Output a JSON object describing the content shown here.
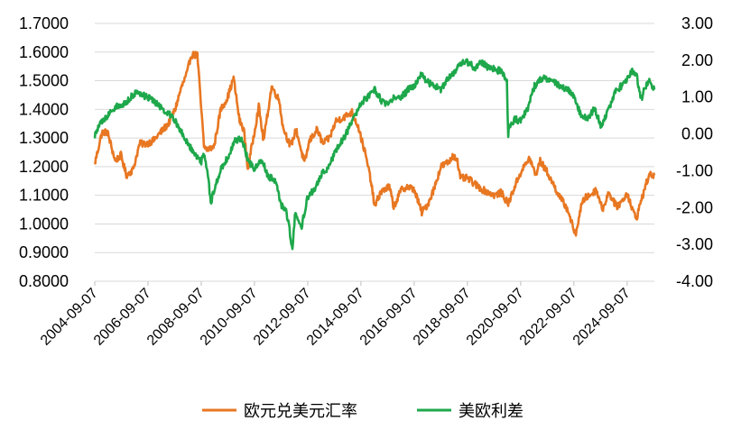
{
  "chart_data": {
    "type": "line",
    "title": "",
    "xlabel": "",
    "ylabel_left": "",
    "ylabel_right": "",
    "x_ticks": [
      "2004-09-07",
      "2006-09-07",
      "2008-09-07",
      "2010-09-07",
      "2012-09-07",
      "2014-09-07",
      "2016-09-07",
      "2018-09-07",
      "2020-09-07",
      "2022-09-07",
      "2024-09-07"
    ],
    "x_range": [
      "2004-09-07",
      "2025-09-15"
    ],
    "y_left": {
      "ticks": [
        "0.8000",
        "0.9000",
        "1.0000",
        "1.1000",
        "1.2000",
        "1.3000",
        "1.4000",
        "1.5000",
        "1.6000",
        "1.7000"
      ],
      "range": [
        0.8,
        1.7
      ]
    },
    "y_right": {
      "ticks": [
        "3.00",
        "2.00",
        "1.00",
        "0.00",
        "-1.00",
        "-2.00",
        "-3.00",
        "-4.00"
      ],
      "range": [
        -4.0,
        3.0
      ]
    },
    "grid": "horizontal",
    "legend_position": "bottom",
    "series": [
      {
        "name": "欧元兑美元汇率",
        "axis": "left",
        "color": "#E87722",
        "points": [
          [
            "2004-09-07",
            1.21
          ],
          [
            "2004-12-15",
            1.32
          ],
          [
            "2005-03-01",
            1.32
          ],
          [
            "2005-06-15",
            1.22
          ],
          [
            "2005-09-01",
            1.24
          ],
          [
            "2005-11-15",
            1.17
          ],
          [
            "2006-02-15",
            1.19
          ],
          [
            "2006-05-15",
            1.28
          ],
          [
            "2006-08-15",
            1.28
          ],
          [
            "2006-11-15",
            1.29
          ],
          [
            "2007-03-01",
            1.32
          ],
          [
            "2007-06-15",
            1.35
          ],
          [
            "2007-09-15",
            1.4
          ],
          [
            "2007-12-01",
            1.47
          ],
          [
            "2008-03-01",
            1.53
          ],
          [
            "2008-04-20",
            1.59
          ],
          [
            "2008-07-15",
            1.59
          ],
          [
            "2008-10-15",
            1.27
          ],
          [
            "2008-12-01",
            1.26
          ],
          [
            "2009-03-01",
            1.27
          ],
          [
            "2009-06-01",
            1.4
          ],
          [
            "2009-09-01",
            1.44
          ],
          [
            "2009-11-25",
            1.51
          ],
          [
            "2010-02-15",
            1.36
          ],
          [
            "2010-04-15",
            1.33
          ],
          [
            "2010-06-07",
            1.19
          ],
          [
            "2010-08-15",
            1.29
          ],
          [
            "2010-11-05",
            1.41
          ],
          [
            "2011-01-10",
            1.29
          ],
          [
            "2011-05-01",
            1.48
          ],
          [
            "2011-08-15",
            1.43
          ],
          [
            "2011-10-01",
            1.34
          ],
          [
            "2012-01-15",
            1.27
          ],
          [
            "2012-04-01",
            1.33
          ],
          [
            "2012-07-24",
            1.21
          ],
          [
            "2012-10-01",
            1.29
          ],
          [
            "2013-01-15",
            1.33
          ],
          [
            "2013-04-01",
            1.28
          ],
          [
            "2013-07-01",
            1.3
          ],
          [
            "2013-10-01",
            1.36
          ],
          [
            "2014-01-01",
            1.37
          ],
          [
            "2014-05-07",
            1.39
          ],
          [
            "2014-08-01",
            1.34
          ],
          [
            "2014-11-01",
            1.25
          ],
          [
            "2015-01-15",
            1.16
          ],
          [
            "2015-03-15",
            1.06
          ],
          [
            "2015-06-01",
            1.11
          ],
          [
            "2015-10-01",
            1.13
          ],
          [
            "2015-12-01",
            1.06
          ],
          [
            "2016-03-15",
            1.12
          ],
          [
            "2016-06-01",
            1.13
          ],
          [
            "2016-09-07",
            1.12
          ],
          [
            "2016-12-20",
            1.04
          ],
          [
            "2017-03-15",
            1.07
          ],
          [
            "2017-06-15",
            1.13
          ],
          [
            "2017-09-07",
            1.2
          ],
          [
            "2018-01-15",
            1.22
          ],
          [
            "2018-02-15",
            1.24
          ],
          [
            "2018-04-15",
            1.23
          ],
          [
            "2018-06-01",
            1.16
          ],
          [
            "2018-09-07",
            1.16
          ],
          [
            "2018-12-15",
            1.14
          ],
          [
            "2019-04-01",
            1.12
          ],
          [
            "2019-09-15",
            1.1
          ],
          [
            "2019-12-15",
            1.11
          ],
          [
            "2020-03-20",
            1.07
          ],
          [
            "2020-06-15",
            1.13
          ],
          [
            "2020-09-07",
            1.18
          ],
          [
            "2021-01-06",
            1.23
          ],
          [
            "2021-03-31",
            1.17
          ],
          [
            "2021-06-01",
            1.22
          ],
          [
            "2021-09-07",
            1.18
          ],
          [
            "2021-12-15",
            1.13
          ],
          [
            "2022-03-07",
            1.09
          ],
          [
            "2022-06-15",
            1.05
          ],
          [
            "2022-09-27",
            0.96
          ],
          [
            "2022-12-15",
            1.06
          ],
          [
            "2023-02-01",
            1.09
          ],
          [
            "2023-04-15",
            1.1
          ],
          [
            "2023-07-15",
            1.12
          ],
          [
            "2023-10-03",
            1.05
          ],
          [
            "2023-12-28",
            1.11
          ],
          [
            "2024-04-15",
            1.06
          ],
          [
            "2024-07-01",
            1.08
          ],
          [
            "2024-09-07",
            1.11
          ],
          [
            "2024-11-15",
            1.05
          ],
          [
            "2025-01-13",
            1.02
          ],
          [
            "2025-03-15",
            1.08
          ],
          [
            "2025-05-15",
            1.13
          ],
          [
            "2025-07-01",
            1.17
          ],
          [
            "2025-09-15",
            1.17
          ]
        ]
      },
      {
        "name": "美欧利差",
        "axis": "right",
        "color": "#1EA84B",
        "points": [
          [
            "2004-09-07",
            -0.05
          ],
          [
            "2004-11-01",
            0.2
          ],
          [
            "2005-01-15",
            0.4
          ],
          [
            "2005-04-15",
            0.6
          ],
          [
            "2005-07-01",
            0.75
          ],
          [
            "2005-10-01",
            0.8
          ],
          [
            "2006-01-01",
            0.95
          ],
          [
            "2006-03-01",
            1.1
          ],
          [
            "2006-06-15",
            1.05
          ],
          [
            "2006-09-07",
            1.0
          ],
          [
            "2006-12-15",
            0.85
          ],
          [
            "2007-03-15",
            0.7
          ],
          [
            "2007-06-15",
            0.55
          ],
          [
            "2007-09-15",
            0.35
          ],
          [
            "2007-12-15",
            0.05
          ],
          [
            "2008-03-15",
            -0.3
          ],
          [
            "2008-06-15",
            -0.55
          ],
          [
            "2008-09-07",
            -0.75
          ],
          [
            "2008-10-15",
            -0.5
          ],
          [
            "2008-12-15",
            -1.2
          ],
          [
            "2009-01-15",
            -1.9
          ],
          [
            "2009-03-15",
            -1.4
          ],
          [
            "2009-06-15",
            -0.9
          ],
          [
            "2009-09-15",
            -0.6
          ],
          [
            "2009-12-15",
            -0.2
          ],
          [
            "2010-03-15",
            -0.1
          ],
          [
            "2010-06-15",
            -0.75
          ],
          [
            "2010-09-07",
            -0.95
          ],
          [
            "2010-12-15",
            -0.7
          ],
          [
            "2011-03-15",
            -1.15
          ],
          [
            "2011-06-15",
            -1.25
          ],
          [
            "2011-09-15",
            -1.95
          ],
          [
            "2011-11-15",
            -2.1
          ],
          [
            "2012-01-01",
            -2.6
          ],
          [
            "2012-02-10",
            -3.15
          ],
          [
            "2012-03-15",
            -2.2
          ],
          [
            "2012-06-15",
            -2.5
          ],
          [
            "2012-09-07",
            -1.7
          ],
          [
            "2012-12-15",
            -1.5
          ],
          [
            "2013-03-15",
            -1.1
          ],
          [
            "2013-06-15",
            -0.9
          ],
          [
            "2013-09-15",
            -0.5
          ],
          [
            "2013-12-15",
            -0.2
          ],
          [
            "2014-03-15",
            0.1
          ],
          [
            "2014-06-15",
            0.5
          ],
          [
            "2014-09-07",
            0.85
          ],
          [
            "2014-12-15",
            1.0
          ],
          [
            "2015-03-15",
            1.2
          ],
          [
            "2015-06-15",
            0.9
          ],
          [
            "2015-09-15",
            0.8
          ],
          [
            "2015-12-15",
            1.0
          ],
          [
            "2016-03-15",
            1.0
          ],
          [
            "2016-06-15",
            1.2
          ],
          [
            "2016-09-07",
            1.3
          ],
          [
            "2016-12-15",
            1.6
          ],
          [
            "2017-03-15",
            1.4
          ],
          [
            "2017-06-15",
            1.3
          ],
          [
            "2017-09-07",
            1.2
          ],
          [
            "2017-12-15",
            1.5
          ],
          [
            "2018-03-15",
            1.7
          ],
          [
            "2018-06-15",
            1.95
          ],
          [
            "2018-09-07",
            1.95
          ],
          [
            "2018-12-15",
            1.8
          ],
          [
            "2019-03-15",
            1.95
          ],
          [
            "2019-06-15",
            1.8
          ],
          [
            "2019-09-15",
            1.75
          ],
          [
            "2019-12-15",
            1.7
          ],
          [
            "2020-02-15",
            1.5
          ],
          [
            "2020-03-01",
            1.4
          ],
          [
            "2020-03-20",
            -0.05
          ],
          [
            "2020-04-01",
            0.2
          ],
          [
            "2020-06-15",
            0.4
          ],
          [
            "2020-09-07",
            0.35
          ],
          [
            "2020-12-15",
            0.7
          ],
          [
            "2021-03-15",
            1.3
          ],
          [
            "2021-06-15",
            1.5
          ],
          [
            "2021-09-07",
            1.5
          ],
          [
            "2021-12-15",
            1.4
          ],
          [
            "2022-03-15",
            1.3
          ],
          [
            "2022-06-15",
            1.2
          ],
          [
            "2022-09-07",
            1.0
          ],
          [
            "2022-12-15",
            0.5
          ],
          [
            "2023-03-15",
            0.4
          ],
          [
            "2023-06-15",
            0.7
          ],
          [
            "2023-09-15",
            0.2
          ],
          [
            "2023-12-15",
            0.6
          ],
          [
            "2024-03-15",
            1.1
          ],
          [
            "2024-06-15",
            1.3
          ],
          [
            "2024-09-07",
            1.5
          ],
          [
            "2024-11-15",
            1.7
          ],
          [
            "2025-01-15",
            1.6
          ],
          [
            "2025-03-15",
            0.9
          ],
          [
            "2025-05-15",
            1.3
          ],
          [
            "2025-07-15",
            1.45
          ],
          [
            "2025-09-15",
            1.2
          ]
        ]
      }
    ]
  }
}
